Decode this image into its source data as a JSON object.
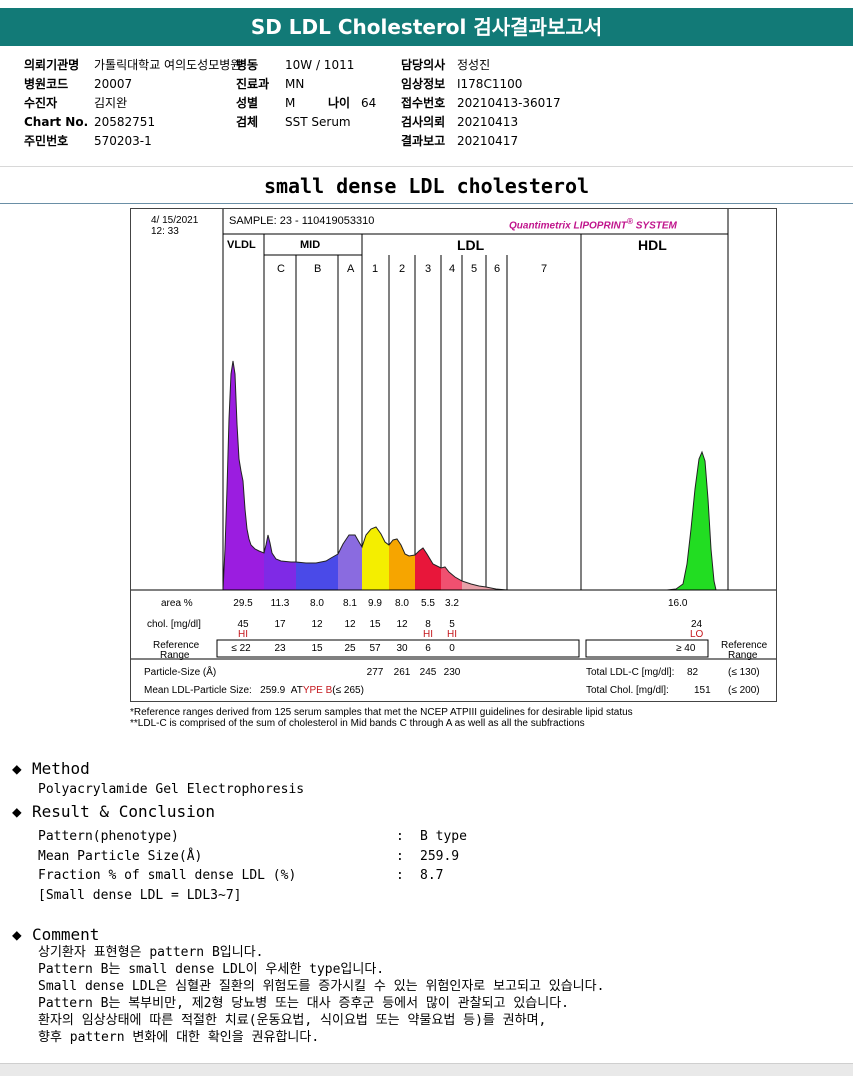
{
  "report": {
    "title": "SD LDL Cholesterol 검사결과보고서",
    "subtitle": "small dense LDL cholesterol"
  },
  "info": {
    "col1": [
      {
        "label": "의뢰기관명",
        "value": "가톨릭대학교 여의도성모병원"
      },
      {
        "label": "병원코드",
        "value": "20007"
      },
      {
        "label": "수진자",
        "value": "김지완"
      },
      {
        "label": "Chart No.",
        "value": "20582751"
      },
      {
        "label": "주민번호",
        "value": "570203-1"
      }
    ],
    "col2": [
      {
        "label": "병동",
        "value": "10W / 1011"
      },
      {
        "label": "진료과",
        "value": "MN"
      },
      {
        "label": "성별",
        "value": "M"
      },
      {
        "label": "검체",
        "value": "SST Serum"
      }
    ],
    "age": {
      "label": "나이",
      "value": "64"
    },
    "col3": [
      {
        "label": "담당의사",
        "value": "정성진"
      },
      {
        "label": "임상정보",
        "value": "I178C1100"
      },
      {
        "label": "접수번호",
        "value": "20210413-36017"
      },
      {
        "label": "검사의뢰",
        "value": "20210413"
      },
      {
        "label": "결과보고",
        "value": "20210417"
      }
    ]
  },
  "chart": {
    "date": "4/ 15/2021",
    "time": "12: 33",
    "sample": "SAMPLE:   23 - 110419053310",
    "brand_a": "Quantimetrix",
    "brand_b": "LIPOPRINT",
    "brand_c": "SYSTEM",
    "brand_mark": "®",
    "group_vldl": "VLDL",
    "group_mid": "MID",
    "group_ldl": "LDL",
    "group_hdl": "HDL",
    "bands": [
      "C",
      "B",
      "A",
      "1",
      "2",
      "3",
      "4",
      "5",
      "6",
      "7"
    ],
    "row_area_label": "area %",
    "row_chol_label": "chol. [mg/dl]",
    "row_ref_label_1": "Reference",
    "row_ref_label_2": "Range",
    "area": [
      "29.5",
      "11.3",
      "8.0",
      "8.1",
      "9.9",
      "8.0",
      "5.5",
      "3.2"
    ],
    "area_hdl": "16.0",
    "chol": [
      "45",
      "17",
      "12",
      "12",
      "15",
      "12",
      "8",
      "5"
    ],
    "chol_hdl": "24",
    "hi": "HI",
    "lo": "LO",
    "ref": [
      "≤ 22",
      "23",
      "15",
      "25",
      "57",
      "30",
      "6",
      "0"
    ],
    "ref_hdl": "≥  40",
    "ref_right_1": "Reference",
    "ref_right_2": "Range",
    "particle_label": "Particle-Size (Å)",
    "particle": [
      "277",
      "261",
      "245",
      "230"
    ],
    "mean_label": "Mean LDL-Particle Size:",
    "mean_value": "259.9",
    "mean_at": "AT",
    "mean_type": "YPE B",
    "mean_ref": "(≤ 265)",
    "total_ldl_label": "Total LDL-C  [mg/dl]:",
    "total_ldl_value": "82",
    "total_ldl_ref": "(≤ 130)",
    "total_chol_label": "Total Chol.  [mg/dl]:",
    "total_chol_value": "151",
    "total_chol_ref": "(≤ 200)",
    "colors": {
      "vldl": "#9b1de0",
      "c": "#7f2ae6",
      "b": "#4a4ae8",
      "a": "#8a6be0",
      "l1": "#f4ee00",
      "l2": "#f6a500",
      "l3": "#e8163a",
      "l4": "#f05070",
      "l5": "#e8a0a8",
      "hdl": "#22dd22"
    }
  },
  "chart_data": {
    "type": "area",
    "title": "small dense LDL cholesterol",
    "categories": [
      "VLDL",
      "MID C",
      "MID B",
      "MID A",
      "LDL 1",
      "LDL 2",
      "LDL 3",
      "LDL 4",
      "HDL"
    ],
    "series": [
      {
        "name": "area %",
        "values": [
          29.5,
          11.3,
          8.0,
          8.1,
          9.9,
          8.0,
          5.5,
          3.2,
          16.0
        ]
      },
      {
        "name": "chol. [mg/dl]",
        "values": [
          45,
          17,
          12,
          12,
          15,
          12,
          8,
          5,
          24
        ]
      }
    ],
    "reference": [
      "≤ 22",
      "23",
      "15",
      "25",
      "57",
      "30",
      "6",
      "0",
      "≥ 40"
    ],
    "particle_size": {
      "LDL 1": 277,
      "LDL 2": 261,
      "LDL 3": 245,
      "LDL 4": 230
    },
    "mean_ldl_particle_size": 259.9,
    "total_ldl_c": 82,
    "total_chol": 151
  },
  "footnotes": [
    "*Reference ranges derived from 125 serum samples that met the NCEP ATPIII guidelines for desirable lipid status",
    "**LDL-C is comprised of the sum of cholesterol in Mid bands C through A as well as all the subfractions"
  ],
  "method": {
    "heading": "Method",
    "text": "Polyacrylamide Gel Electrophoresis"
  },
  "result": {
    "heading": "Result & Conclusion",
    "rows": [
      {
        "label": "Pattern(phenotype)",
        "value": "B type"
      },
      {
        "label": "Mean Particle Size(Å)",
        "value": "259.9"
      },
      {
        "label": "Fraction % of small dense LDL (%)",
        "value": "8.7"
      }
    ],
    "colon": ":",
    "note": "[Small dense LDL = LDL3~7]"
  },
  "comment": {
    "heading": "Comment",
    "lines": [
      "상기환자 표현형은 pattern B입니다.",
      "Pattern B는 small dense LDL이 우세한 type입니다.",
      "Small dense LDL은 심혈관 질환의 위험도를 증가시킬 수 있는 위험인자로 보고되고 있습니다.",
      "Pattern B는 복부비만, 제2형 당뇨병 또는 대사 증후군 등에서 많이 관찰되고 있습니다.",
      "환자의 임상상태에 따른 적절한 치료(운동요법, 식이요법 또는 약물요법 등)를 권하며,",
      "향후 pattern 변화에 대한 확인을 권유합니다."
    ]
  }
}
